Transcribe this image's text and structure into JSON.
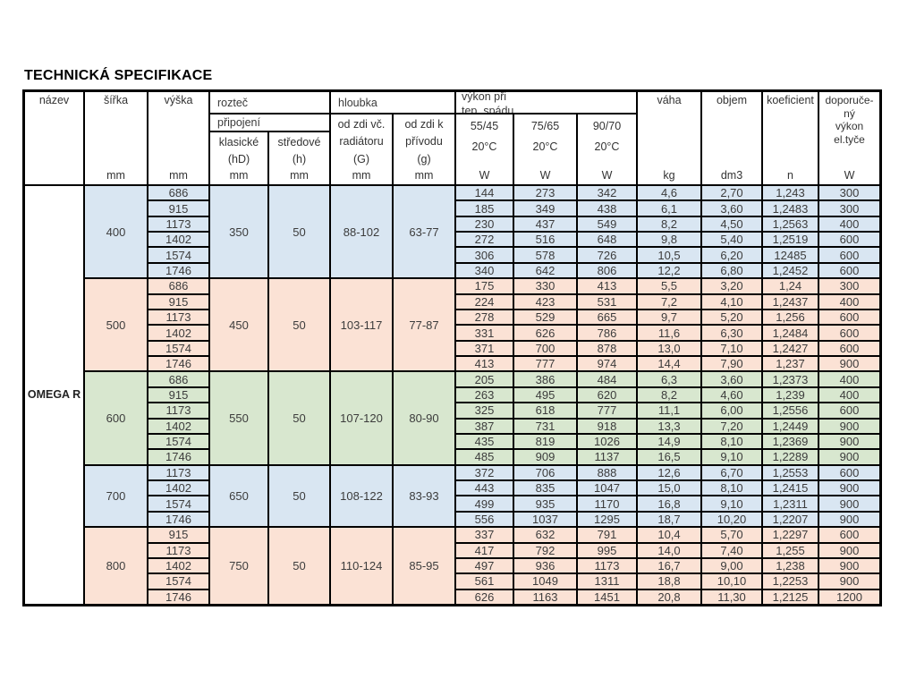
{
  "title": "TECHNICKÁ SPECIFIKACE",
  "product_name": "OMEGA R",
  "colors": {
    "blue": "#d9e6f2",
    "pink": "#fbe2d5",
    "green": "#d8e7cf"
  },
  "header": {
    "nazev": "název",
    "sirka": "šířka",
    "vyska": "výška",
    "roztec": "rozteč",
    "pripojeni": "připojení",
    "klasicke": "klasické\n(hD)",
    "stredove": "středové\n(h)",
    "hloubka": "hloubka",
    "od_zdi_vc_radiatoru": "od zdi vč.\nradiátoru\n(G)",
    "od_zdi_k_privodu": "od zdi k\npřívodu\n(g)",
    "vykon_pri_tep_spadu": "výkon při\ntep. spádu",
    "t_55_45": "55/45\n20°C",
    "t_75_65": "75/65\n20°C",
    "t_90_70": "90/70\n20°C",
    "vaha": "váha",
    "objem": "objem",
    "koeficient": "koeficient",
    "doporuceny_vykon": "doporuče-\nný\nvýkon\nel.tyče",
    "unit_mm": "mm",
    "unit_w": "W",
    "unit_kg": "kg",
    "unit_dm3": "dm3",
    "unit_n": "n"
  },
  "groups": [
    {
      "sirka": "400",
      "color": "blue",
      "klasicke": "350",
      "stredove": "50",
      "hloubka_G": "88-102",
      "hloubka_g": "63-77",
      "rows": [
        {
          "vyska": "686",
          "w_55_45": "144",
          "w_75_65": "273",
          "w_90_70": "342",
          "vaha": "4,6",
          "objem": "2,70",
          "koeficient": "1,243",
          "doporuceny": "300"
        },
        {
          "vyska": "915",
          "w_55_45": "185",
          "w_75_65": "349",
          "w_90_70": "438",
          "vaha": "6,1",
          "objem": "3,60",
          "koeficient": "1,2483",
          "doporuceny": "300"
        },
        {
          "vyska": "1173",
          "w_55_45": "230",
          "w_75_65": "437",
          "w_90_70": "549",
          "vaha": "8,2",
          "objem": "4,50",
          "koeficient": "1,2563",
          "doporuceny": "400"
        },
        {
          "vyska": "1402",
          "w_55_45": "272",
          "w_75_65": "516",
          "w_90_70": "648",
          "vaha": "9,8",
          "objem": "5,40",
          "koeficient": "1,2519",
          "doporuceny": "600"
        },
        {
          "vyska": "1574",
          "w_55_45": "306",
          "w_75_65": "578",
          "w_90_70": "726",
          "vaha": "10,5",
          "objem": "6,20",
          "koeficient": "12485",
          "doporuceny": "600"
        },
        {
          "vyska": "1746",
          "w_55_45": "340",
          "w_75_65": "642",
          "w_90_70": "806",
          "vaha": "12,2",
          "objem": "6,80",
          "koeficient": "1,2452",
          "doporuceny": "600"
        }
      ]
    },
    {
      "sirka": "500",
      "color": "pink",
      "klasicke": "450",
      "stredove": "50",
      "hloubka_G": "103-117",
      "hloubka_g": "77-87",
      "rows": [
        {
          "vyska": "686",
          "w_55_45": "175",
          "w_75_65": "330",
          "w_90_70": "413",
          "vaha": "5,5",
          "objem": "3,20",
          "koeficient": "1,24",
          "doporuceny": "300"
        },
        {
          "vyska": "915",
          "w_55_45": "224",
          "w_75_65": "423",
          "w_90_70": "531",
          "vaha": "7,2",
          "objem": "4,10",
          "koeficient": "1,2437",
          "doporuceny": "400"
        },
        {
          "vyska": "1173",
          "w_55_45": "278",
          "w_75_65": "529",
          "w_90_70": "665",
          "vaha": "9,7",
          "objem": "5,20",
          "koeficient": "1,256",
          "doporuceny": "600"
        },
        {
          "vyska": "1402",
          "w_55_45": "331",
          "w_75_65": "626",
          "w_90_70": "786",
          "vaha": "11,6",
          "objem": "6,30",
          "koeficient": "1,2484",
          "doporuceny": "600"
        },
        {
          "vyska": "1574",
          "w_55_45": "371",
          "w_75_65": "700",
          "w_90_70": "878",
          "vaha": "13,0",
          "objem": "7,10",
          "koeficient": "1,2427",
          "doporuceny": "600"
        },
        {
          "vyska": "1746",
          "w_55_45": "413",
          "w_75_65": "777",
          "w_90_70": "974",
          "vaha": "14,4",
          "objem": "7,90",
          "koeficient": "1,237",
          "doporuceny": "900"
        }
      ]
    },
    {
      "sirka": "600",
      "color": "green",
      "klasicke": "550",
      "stredove": "50",
      "hloubka_G": "107-120",
      "hloubka_g": "80-90",
      "rows": [
        {
          "vyska": "686",
          "w_55_45": "205",
          "w_75_65": "386",
          "w_90_70": "484",
          "vaha": "6,3",
          "objem": "3,60",
          "koeficient": "1,2373",
          "doporuceny": "400"
        },
        {
          "vyska": "915",
          "w_55_45": "263",
          "w_75_65": "495",
          "w_90_70": "620",
          "vaha": "8,2",
          "objem": "4,60",
          "koeficient": "1,239",
          "doporuceny": "400"
        },
        {
          "vyska": "1173",
          "w_55_45": "325",
          "w_75_65": "618",
          "w_90_70": "777",
          "vaha": "11,1",
          "objem": "6,00",
          "koeficient": "1,2556",
          "doporuceny": "600"
        },
        {
          "vyska": "1402",
          "w_55_45": "387",
          "w_75_65": "731",
          "w_90_70": "918",
          "vaha": "13,3",
          "objem": "7,20",
          "koeficient": "1,2449",
          "doporuceny": "900"
        },
        {
          "vyska": "1574",
          "w_55_45": "435",
          "w_75_65": "819",
          "w_90_70": "1026",
          "vaha": "14,9",
          "objem": "8,10",
          "koeficient": "1,2369",
          "doporuceny": "900"
        },
        {
          "vyska": "1746",
          "w_55_45": "485",
          "w_75_65": "909",
          "w_90_70": "1137",
          "vaha": "16,5",
          "objem": "9,10",
          "koeficient": "1,2289",
          "doporuceny": "900"
        }
      ]
    },
    {
      "sirka": "700",
      "color": "blue",
      "klasicke": "650",
      "stredove": "50",
      "hloubka_G": "108-122",
      "hloubka_g": "83-93",
      "rows": [
        {
          "vyska": "1173",
          "w_55_45": "372",
          "w_75_65": "706",
          "w_90_70": "888",
          "vaha": "12,6",
          "objem": "6,70",
          "koeficient": "1,2553",
          "doporuceny": "600"
        },
        {
          "vyska": "1402",
          "w_55_45": "443",
          "w_75_65": "835",
          "w_90_70": "1047",
          "vaha": "15,0",
          "objem": "8,10",
          "koeficient": "1,2415",
          "doporuceny": "900"
        },
        {
          "vyska": "1574",
          "w_55_45": "499",
          "w_75_65": "935",
          "w_90_70": "1170",
          "vaha": "16,8",
          "objem": "9,10",
          "koeficient": "1,2311",
          "doporuceny": "900"
        },
        {
          "vyska": "1746",
          "w_55_45": "556",
          "w_75_65": "1037",
          "w_90_70": "1295",
          "vaha": "18,7",
          "objem": "10,20",
          "koeficient": "1,2207",
          "doporuceny": "900"
        }
      ]
    },
    {
      "sirka": "800",
      "color": "pink",
      "klasicke": "750",
      "stredove": "50",
      "hloubka_G": "110-124",
      "hloubka_g": "85-95",
      "rows": [
        {
          "vyska": "915",
          "w_55_45": "337",
          "w_75_65": "632",
          "w_90_70": "791",
          "vaha": "10,4",
          "objem": "5,70",
          "koeficient": "1,2297",
          "doporuceny": "600"
        },
        {
          "vyska": "1173",
          "w_55_45": "417",
          "w_75_65": "792",
          "w_90_70": "995",
          "vaha": "14,0",
          "objem": "7,40",
          "koeficient": "1,255",
          "doporuceny": "900"
        },
        {
          "vyska": "1402",
          "w_55_45": "497",
          "w_75_65": "936",
          "w_90_70": "1173",
          "vaha": "16,7",
          "objem": "9,00",
          "koeficient": "1,238",
          "doporuceny": "900"
        },
        {
          "vyska": "1574",
          "w_55_45": "561",
          "w_75_65": "1049",
          "w_90_70": "1311",
          "vaha": "18,8",
          "objem": "10,10",
          "koeficient": "1,2253",
          "doporuceny": "900"
        },
        {
          "vyska": "1746",
          "w_55_45": "626",
          "w_75_65": "1163",
          "w_90_70": "1451",
          "vaha": "20,8",
          "objem": "11,30",
          "koeficient": "1,2125",
          "doporuceny": "1200"
        }
      ]
    }
  ]
}
